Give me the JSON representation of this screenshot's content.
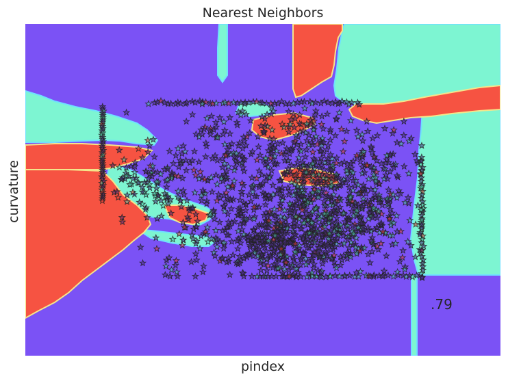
{
  "chart_data": {
    "type": "scatter",
    "title": "Nearest Neighbors",
    "xlabel": "pindex",
    "ylabel": "curvature",
    "annotation": ".79",
    "grid": false,
    "legend": "none",
    "background": "decision-regions",
    "region_classes": [
      {
        "class": "0",
        "color": "#7b52f5"
      },
      {
        "class": "1",
        "color": "#7df5d2"
      },
      {
        "class": "2",
        "color": "#f65342"
      }
    ],
    "marker": "star",
    "marker_edge_color": "#222222",
    "point_counts": {
      "total_approx": 1500,
      "class_0": 900,
      "class_1": 450,
      "class_2": 150
    }
  }
}
